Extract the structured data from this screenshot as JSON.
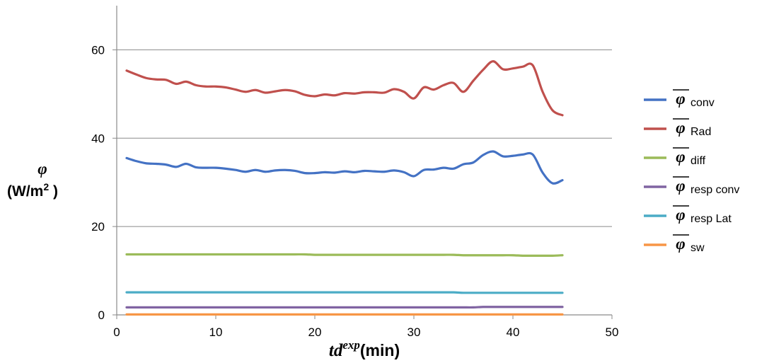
{
  "chart_data": {
    "type": "line",
    "xlabel": "td",
    "xlabel_superscript": "exp",
    "xlabel_unit": "(min)",
    "ylabel_symbol": "φ",
    "ylabel_unit": "(W/m",
    "ylabel_unit_superscript": "2",
    "ylabel_unit_close": " )",
    "xlim": [
      0,
      50
    ],
    "ylim": [
      0,
      70
    ],
    "x_ticks": [
      "0",
      "10",
      "20",
      "30",
      "40",
      "50"
    ],
    "y_ticks": [
      "0",
      "20",
      "40",
      "60"
    ],
    "grid": "horizontal",
    "legend_position": "right",
    "x": [
      1,
      2,
      3,
      4,
      5,
      6,
      7,
      8,
      9,
      10,
      11,
      12,
      13,
      14,
      15,
      16,
      17,
      18,
      19,
      20,
      21,
      22,
      23,
      24,
      25,
      26,
      27,
      28,
      29,
      30,
      31,
      32,
      33,
      34,
      35,
      36,
      37,
      38,
      39,
      40,
      41,
      42,
      43,
      44,
      45
    ],
    "series": [
      {
        "name": "φ",
        "subscript": "conv",
        "color": "#4472C4",
        "values": [
          35.5,
          34.8,
          34.3,
          34.2,
          34.0,
          33.5,
          34.2,
          33.4,
          33.3,
          33.3,
          33.1,
          32.8,
          32.4,
          32.8,
          32.4,
          32.7,
          32.8,
          32.6,
          32.1,
          32.1,
          32.3,
          32.2,
          32.5,
          32.3,
          32.6,
          32.5,
          32.4,
          32.7,
          32.3,
          31.4,
          32.8,
          32.9,
          33.3,
          33.1,
          34.1,
          34.5,
          36.2,
          37.0,
          35.9,
          36.0,
          36.3,
          36.3,
          32.2,
          29.8,
          30.5
        ]
      },
      {
        "name": "φ",
        "subscript": "Rad",
        "color": "#C0504D",
        "values": [
          55.3,
          54.4,
          53.6,
          53.3,
          53.2,
          52.3,
          52.8,
          52.0,
          51.7,
          51.7,
          51.5,
          51.0,
          50.5,
          50.9,
          50.3,
          50.6,
          50.9,
          50.6,
          49.8,
          49.5,
          49.9,
          49.7,
          50.2,
          50.1,
          50.4,
          50.4,
          50.3,
          51.1,
          50.5,
          49.0,
          51.5,
          51.0,
          52.0,
          52.5,
          50.5,
          53.0,
          55.5,
          57.4,
          55.6,
          55.8,
          56.2,
          56.5,
          50.5,
          46.3,
          45.2
        ]
      },
      {
        "name": "φ",
        "subscript": "diff",
        "color": "#9BBB59",
        "values": [
          13.7,
          13.7,
          13.7,
          13.7,
          13.7,
          13.7,
          13.7,
          13.7,
          13.7,
          13.7,
          13.7,
          13.7,
          13.7,
          13.7,
          13.7,
          13.7,
          13.7,
          13.7,
          13.7,
          13.6,
          13.6,
          13.6,
          13.6,
          13.6,
          13.6,
          13.6,
          13.6,
          13.6,
          13.6,
          13.6,
          13.6,
          13.6,
          13.6,
          13.6,
          13.5,
          13.5,
          13.5,
          13.5,
          13.5,
          13.5,
          13.4,
          13.4,
          13.4,
          13.4,
          13.5
        ]
      },
      {
        "name": "φ",
        "subscript": "resp conv",
        "color": "#8064A2",
        "values": [
          1.7,
          1.7,
          1.7,
          1.7,
          1.7,
          1.7,
          1.7,
          1.7,
          1.7,
          1.7,
          1.7,
          1.7,
          1.7,
          1.7,
          1.7,
          1.7,
          1.7,
          1.7,
          1.7,
          1.7,
          1.7,
          1.7,
          1.7,
          1.7,
          1.7,
          1.7,
          1.7,
          1.7,
          1.7,
          1.7,
          1.7,
          1.7,
          1.7,
          1.7,
          1.7,
          1.7,
          1.8,
          1.8,
          1.8,
          1.8,
          1.8,
          1.8,
          1.8,
          1.8,
          1.8
        ]
      },
      {
        "name": "φ",
        "subscript": "resp Lat",
        "color": "#4BACC6",
        "values": [
          5.1,
          5.1,
          5.1,
          5.1,
          5.1,
          5.1,
          5.1,
          5.1,
          5.1,
          5.1,
          5.1,
          5.1,
          5.1,
          5.1,
          5.1,
          5.1,
          5.1,
          5.1,
          5.1,
          5.1,
          5.1,
          5.1,
          5.1,
          5.1,
          5.1,
          5.1,
          5.1,
          5.1,
          5.1,
          5.1,
          5.1,
          5.1,
          5.1,
          5.1,
          5.0,
          5.0,
          5.0,
          5.0,
          5.0,
          5.0,
          5.0,
          5.0,
          5.0,
          5.0,
          5.0
        ]
      },
      {
        "name": "φ",
        "subscript": "sw",
        "color": "#F79646",
        "values": [
          0.1,
          0.1,
          0.1,
          0.1,
          0.1,
          0.1,
          0.1,
          0.1,
          0.1,
          0.1,
          0.1,
          0.1,
          0.1,
          0.1,
          0.1,
          0.1,
          0.1,
          0.1,
          0.1,
          0.1,
          0.1,
          0.1,
          0.1,
          0.1,
          0.1,
          0.1,
          0.1,
          0.1,
          0.1,
          0.1,
          0.1,
          0.1,
          0.1,
          0.1,
          0.1,
          0.1,
          0.1,
          0.1,
          0.1,
          0.1,
          0.1,
          0.1,
          0.1,
          0.1,
          0.1
        ]
      }
    ]
  }
}
